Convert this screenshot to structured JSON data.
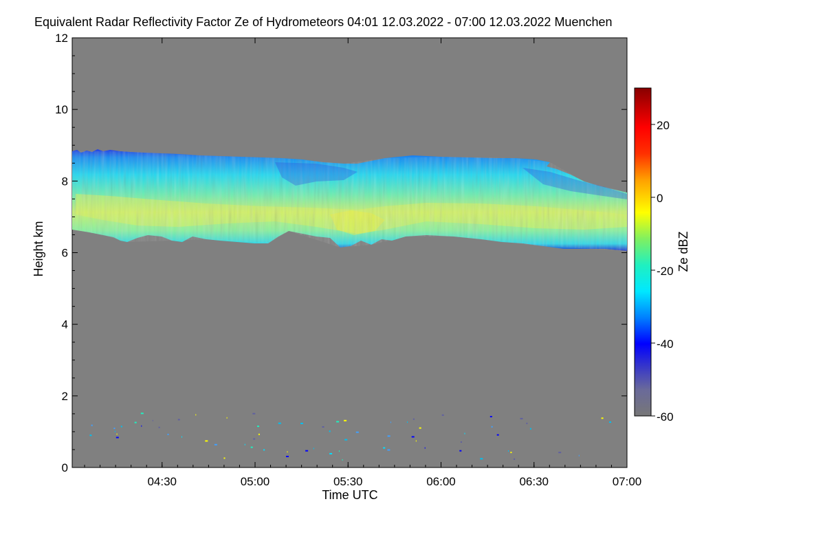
{
  "title": "Equivalent Radar Reflectivity Factor Ze of Hydrometeors   04:01 12.03.2022 - 07:00 12.03.2022 Muenchen",
  "chart_data": {
    "type": "heatmap",
    "title": "Equivalent Radar Reflectivity Factor Ze of Hydrometeors",
    "time_range": "04:01 12.03.2022 - 07:00 12.03.2022",
    "location": "Muenchen",
    "xlabel": "Time UTC",
    "ylabel": "Height km",
    "xlim": [
      "04:01",
      "07:00"
    ],
    "ylim": [
      0,
      12
    ],
    "x_ticks": [
      "04:30",
      "05:00",
      "05:30",
      "06:00",
      "06:30",
      "07:00"
    ],
    "y_ticks": [
      0,
      2,
      4,
      6,
      8,
      10,
      12
    ],
    "colorbar": {
      "label": "Ze dBZ",
      "range": [
        -60,
        30
      ],
      "ticks": [
        -60,
        -40,
        -20,
        0,
        20
      ]
    },
    "background_color": "#808080",
    "cloud_layer": {
      "top_km": [
        {
          "t": "04:01",
          "h": 8.7
        },
        {
          "t": "04:30",
          "h": 8.6
        },
        {
          "t": "05:00",
          "h": 8.5
        },
        {
          "t": "05:30",
          "h": 8.45
        },
        {
          "t": "05:45",
          "h": 8.6
        },
        {
          "t": "06:00",
          "h": 8.6
        },
        {
          "t": "06:30",
          "h": 8.5
        },
        {
          "t": "06:45",
          "h": 8.0
        },
        {
          "t": "07:00",
          "h": 7.7
        }
      ],
      "base_km": [
        {
          "t": "04:01",
          "h": 6.6
        },
        {
          "t": "04:15",
          "h": 6.3
        },
        {
          "t": "04:30",
          "h": 6.4
        },
        {
          "t": "05:00",
          "h": 6.3
        },
        {
          "t": "05:30",
          "h": 6.2
        },
        {
          "t": "06:00",
          "h": 6.4
        },
        {
          "t": "06:30",
          "h": 6.3
        },
        {
          "t": "06:45",
          "h": 6.1
        },
        {
          "t": "07:00",
          "h": 6.1
        }
      ],
      "max_ze_dbz": -5
    }
  }
}
